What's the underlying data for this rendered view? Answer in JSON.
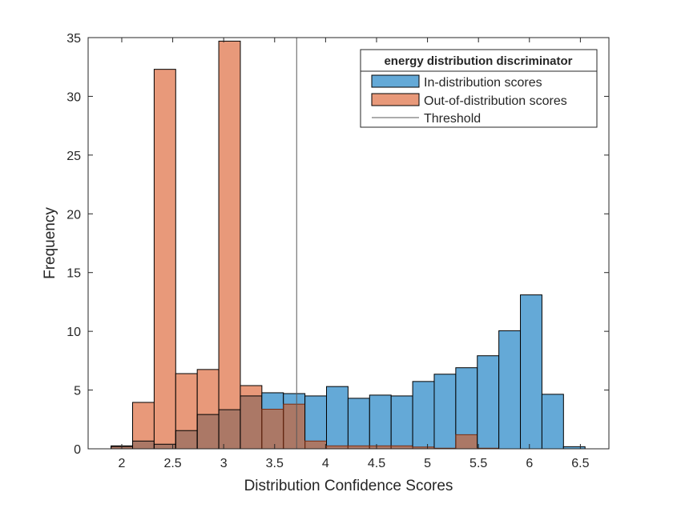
{
  "chart_data": {
    "type": "histogram",
    "xlabel": "Distribution Confidence Scores",
    "ylabel": "Frequency",
    "xlim": [
      1.67,
      6.78
    ],
    "ylim": [
      0,
      35
    ],
    "xticks": [
      2,
      2.5,
      3,
      3.5,
      4,
      4.5,
      5,
      5.5,
      6,
      6.5
    ],
    "xtick_labels": [
      "2",
      "2.5",
      "3",
      "3.5",
      "4",
      "4.5",
      "5",
      "5.5",
      "6",
      "6.5"
    ],
    "yticks": [
      0,
      5,
      10,
      15,
      20,
      25,
      30,
      35
    ],
    "ytick_labels": [
      "0",
      "5",
      "10",
      "15",
      "20",
      "25",
      "30",
      "35"
    ],
    "grid": false,
    "bin_start": 1.895,
    "bin_width": 0.2114,
    "series": [
      {
        "name": "In-distribution scores",
        "color": "#64a9d7",
        "values": [
          0.2,
          0.66,
          0.39,
          1.55,
          2.92,
          3.33,
          4.5,
          4.77,
          4.7,
          4.5,
          5.3,
          4.3,
          4.57,
          4.5,
          5.73,
          6.35,
          6.9,
          7.92,
          10.05,
          13.1,
          4.64,
          0.18
        ]
      },
      {
        "name": "Out-of-distribution scores",
        "color": "#e8997a",
        "values": [
          0.25,
          3.95,
          32.3,
          6.4,
          6.75,
          34.7,
          5.38,
          3.37,
          3.8,
          0.66,
          0.25,
          0.25,
          0.25,
          0.25,
          0.15,
          0.05,
          1.2,
          0.05,
          0,
          0,
          0,
          0
        ]
      }
    ],
    "threshold": {
      "name": "Threshold",
      "x": 3.716,
      "color": "#595959"
    },
    "overlap_color": "#ab7866",
    "legend": {
      "title": "energy distribution discriminator",
      "placement": "top-right"
    }
  }
}
